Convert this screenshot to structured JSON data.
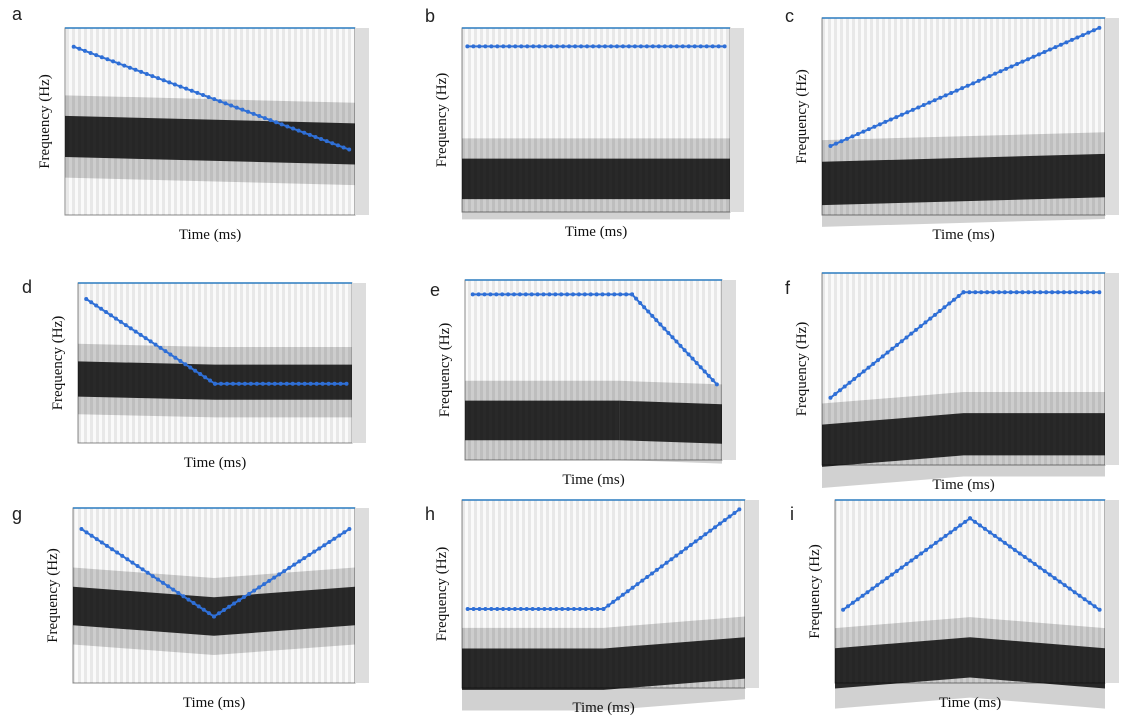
{
  "figure": {
    "panels": [
      {
        "label": "a",
        "x_label": "Time (ms)",
        "y_label": "Frequency (Hz)"
      },
      {
        "label": "b",
        "x_label": "Time (ms)",
        "y_label": "Frequency (Hz)"
      },
      {
        "label": "c",
        "x_label": "Time (ms)",
        "y_label": "Frequency (Hz)"
      },
      {
        "label": "d",
        "x_label": "Time (ms)",
        "y_label": "Frequency (Hz)"
      },
      {
        "label": "e",
        "x_label": "Time (ms)",
        "y_label": "Frequency (Hz)"
      },
      {
        "label": "f",
        "x_label": "Time (ms)",
        "y_label": "Frequency (Hz)"
      },
      {
        "label": "g",
        "x_label": "Time (ms)",
        "y_label": "Frequency (Hz)"
      },
      {
        "label": "h",
        "x_label": "Time (ms)",
        "y_label": "Frequency (Hz)"
      },
      {
        "label": "i",
        "x_label": "Time (ms)",
        "y_label": "Frequency (Hz)"
      }
    ]
  }
}
